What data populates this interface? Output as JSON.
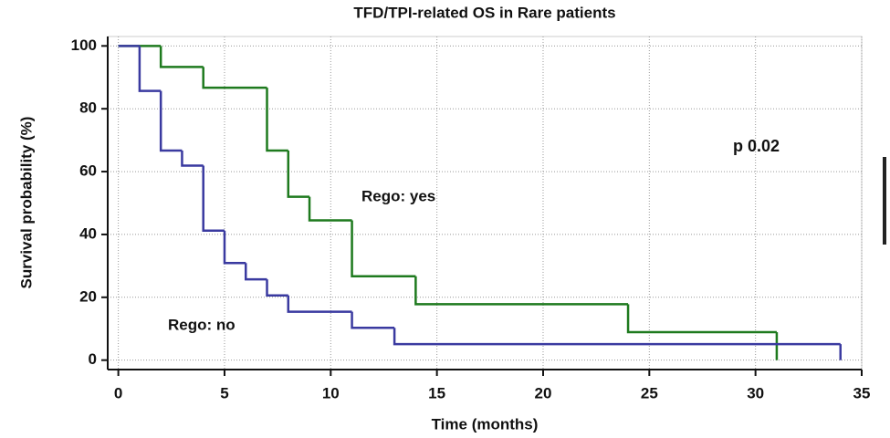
{
  "chart_data": {
    "type": "step",
    "title": "TFD/TPI-related OS in Rare patients",
    "xlabel": "Time (months)",
    "ylabel": "Survival probability (%)",
    "xlim": [
      -0.5,
      35
    ],
    "xticks": [
      0,
      5,
      10,
      15,
      20,
      25,
      30,
      35
    ],
    "ylim": [
      -3,
      103
    ],
    "yticks": [
      0,
      20,
      40,
      60,
      80,
      100
    ],
    "grid": true,
    "series": [
      {
        "name": "Rego: yes",
        "color": "#1e7a1e",
        "x": [
          0,
          2,
          4,
          7,
          8,
          9,
          11,
          14,
          24,
          31
        ],
        "values": [
          100,
          93.3,
          86.7,
          66.7,
          52,
          44.5,
          26.7,
          17.8,
          8.9,
          0
        ]
      },
      {
        "name": "Rego: no",
        "color": "#3a3aa0",
        "x": [
          0,
          1,
          2,
          3,
          4,
          5,
          6,
          7,
          8,
          11,
          13,
          34
        ],
        "values": [
          100,
          85.7,
          66.7,
          61.9,
          41.2,
          30.9,
          25.7,
          20.6,
          15.4,
          10.3,
          5.1,
          0
        ]
      }
    ],
    "annotations": [
      "p 0.02"
    ]
  }
}
